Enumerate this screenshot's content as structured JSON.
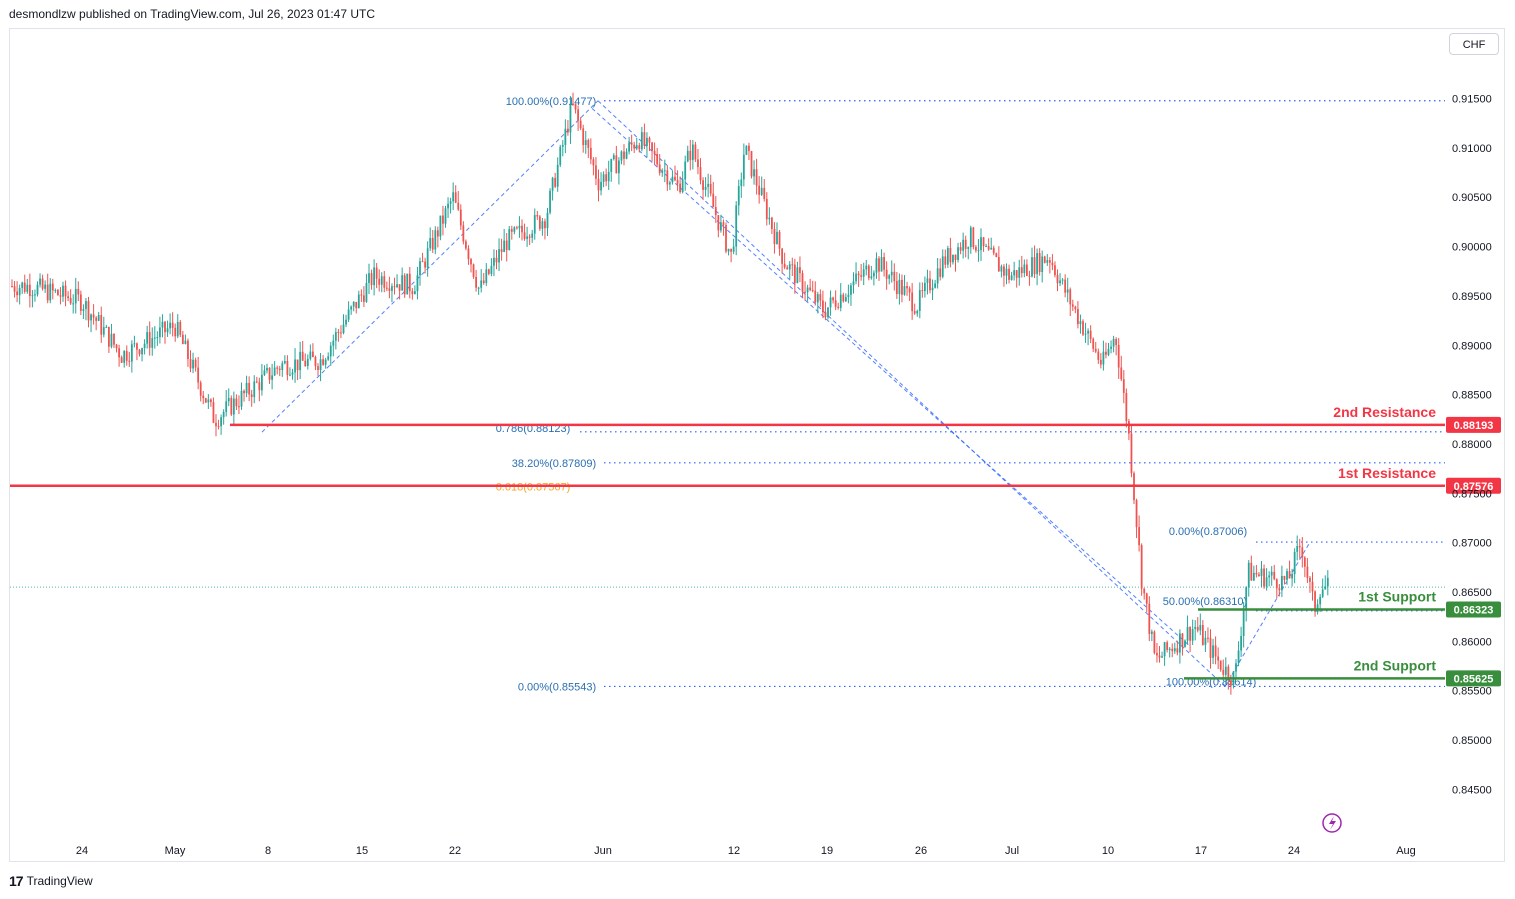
{
  "header": {
    "publisher": "desmondlzw published on TradingView.com, Jul 26, 2023 01:47 UTC"
  },
  "currency_label": "CHF",
  "footer": {
    "brand": "TradingView",
    "logo_mark": "17"
  },
  "colors": {
    "up": "#26a69a",
    "down": "#ef5350",
    "resistance": "#f23645",
    "support": "#388e3c",
    "fib": "#2962ff",
    "fib_text": "#2a6fb3",
    "gold": "#f5a623"
  },
  "chart_data": {
    "type": "candlestick",
    "symbol_currency": "CHF",
    "ylim": [
      0.84,
      0.919
    ],
    "y_ticks": [
      0.915,
      0.91,
      0.905,
      0.9,
      0.895,
      0.89,
      0.885,
      0.88,
      0.875,
      0.87,
      0.865,
      0.86,
      0.855,
      0.85,
      0.845
    ],
    "x_ticks": [
      "24",
      "May",
      "8",
      "15",
      "22",
      "Jun",
      "12",
      "19",
      "26",
      "Jul",
      "10",
      "17",
      "24",
      "Aug"
    ],
    "price_path": [
      [
        "Apr 20",
        0.896
      ],
      [
        "Apr 24",
        0.8945
      ],
      [
        "Apr 27",
        0.889
      ],
      [
        "May 1",
        0.892
      ],
      [
        "May 4",
        0.8825
      ],
      [
        "May 9",
        0.888
      ],
      [
        "May 12",
        0.8885
      ],
      [
        "May 16",
        0.897
      ],
      [
        "May 19",
        0.896
      ],
      [
        "May 22",
        0.905
      ],
      [
        "May 24",
        0.8955
      ],
      [
        "May 26",
        0.9005
      ],
      [
        "May 29",
        0.903
      ],
      [
        "May 31",
        0.9143
      ],
      [
        "Jun 2",
        0.9065
      ],
      [
        "Jun 5",
        0.911
      ],
      [
        "Jun 8",
        0.906
      ],
      [
        "Jun 9",
        0.91
      ],
      [
        "Jun 12",
        0.899
      ],
      [
        "Jun 13",
        0.91
      ],
      [
        "Jun 16",
        0.8985
      ],
      [
        "Jun 19",
        0.8935
      ],
      [
        "Jun 23",
        0.8985
      ],
      [
        "Jun 26",
        0.894
      ],
      [
        "Jun 28",
        0.8985
      ],
      [
        "Jun 30",
        0.901
      ],
      [
        "Jul 3",
        0.897
      ],
      [
        "Jul 6",
        0.899
      ],
      [
        "Jul 7",
        0.896
      ],
      [
        "Jul 10",
        0.888
      ],
      [
        "Jul 11",
        0.891
      ],
      [
        "Jul 12",
        0.881
      ],
      [
        "Jul 13",
        0.866
      ],
      [
        "Jul 14",
        0.858
      ],
      [
        "Jul 17",
        0.8615
      ],
      [
        "Jul 19",
        0.8575
      ],
      [
        "Jul 20",
        0.8562
      ],
      [
        "Jul 21",
        0.867
      ],
      [
        "Jul 24",
        0.866
      ],
      [
        "Jul 25",
        0.87
      ],
      [
        "Jul 26",
        0.8632
      ],
      [
        "Jul 26b",
        0.8655
      ]
    ],
    "last_price_line": 0.8655,
    "levels": [
      {
        "label": "2nd Resistance",
        "price_label": "0.88193",
        "value": 0.88193,
        "kind": "resistance"
      },
      {
        "label": "1st Resistance",
        "price_label": "0.87576",
        "value": 0.87576,
        "kind": "resistance"
      },
      {
        "label": "1st Support",
        "price_label": "0.86323",
        "value": 0.86323,
        "kind": "support"
      },
      {
        "label": "2nd Support",
        "price_label": "0.85625",
        "value": 0.85625,
        "kind": "support"
      }
    ],
    "fib_labels": [
      {
        "text": "100.00%(0.91477)",
        "value": 0.91477
      },
      {
        "text": "0.786(0.88123)",
        "value": 0.88123
      },
      {
        "text": "38.20%(0.87809)",
        "value": 0.87809
      },
      {
        "text": "0.618(0.87567)",
        "value": 0.87567
      },
      {
        "text": "0.00%(0.85543)",
        "value": 0.85543
      },
      {
        "text": "0.00%(0.87006)",
        "value": 0.87006
      },
      {
        "text": "50.00%(0.86310)",
        "value": 0.8631
      },
      {
        "text": "100.00%(0.85614)",
        "value": 0.85614
      }
    ]
  }
}
